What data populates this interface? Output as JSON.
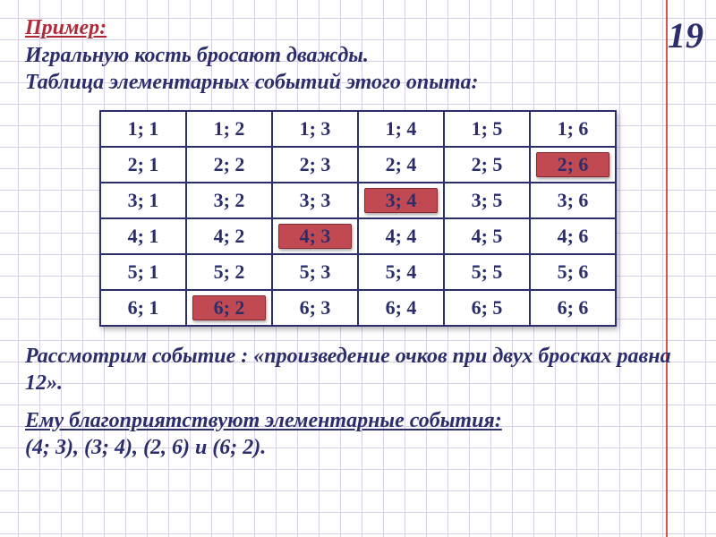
{
  "page_number": "19",
  "title": "Пример:",
  "description_line1": "Игральную кость бросают дважды.",
  "description_line2": "Таблица элементарных событий этого опыта:",
  "table": {
    "rows": [
      [
        {
          "v": "1; 1"
        },
        {
          "v": "1; 2"
        },
        {
          "v": "1; 3"
        },
        {
          "v": "1; 4"
        },
        {
          "v": "1; 5"
        },
        {
          "v": "1; 6"
        }
      ],
      [
        {
          "v": "2; 1"
        },
        {
          "v": "2; 2"
        },
        {
          "v": "2; 3"
        },
        {
          "v": "2; 4"
        },
        {
          "v": "2; 5"
        },
        {
          "v": "2; 6",
          "hl": true
        }
      ],
      [
        {
          "v": "3; 1"
        },
        {
          "v": "3; 2"
        },
        {
          "v": "3; 3"
        },
        {
          "v": "3; 4",
          "hl": true
        },
        {
          "v": "3; 5"
        },
        {
          "v": "3; 6"
        }
      ],
      [
        {
          "v": "4; 1"
        },
        {
          "v": "4; 2"
        },
        {
          "v": "4; 3",
          "hl": true
        },
        {
          "v": "4; 4"
        },
        {
          "v": "4; 5"
        },
        {
          "v": "4; 6"
        }
      ],
      [
        {
          "v": "5; 1"
        },
        {
          "v": "5; 2"
        },
        {
          "v": "5; 3"
        },
        {
          "v": "5; 4"
        },
        {
          "v": "5; 5"
        },
        {
          "v": "5; 6"
        }
      ],
      [
        {
          "v": "6; 1"
        },
        {
          "v": "6; 2",
          "hl": true
        },
        {
          "v": "6; 3"
        },
        {
          "v": "6; 4"
        },
        {
          "v": "6; 5"
        },
        {
          "v": "6; 6"
        }
      ]
    ]
  },
  "event_text": "Рассмотрим событие : «произведение очков при двух бросках равна 12».",
  "favorable_title": "Ему благоприятствуют элементарные события:",
  "favorable_list": "(4; 3), (3; 4), (2, 6) и (6; 2).",
  "colors": {
    "grid": "#d8d0e8",
    "margin": "#d9534f",
    "text_main": "#2b2e6b",
    "title": "#b02a3a",
    "highlight": "#c14a52",
    "border": "#2b2e6b",
    "background": "#ffffff"
  }
}
